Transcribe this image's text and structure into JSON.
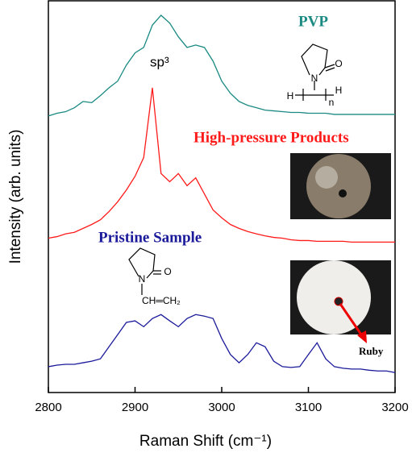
{
  "chart_data": {
    "type": "line",
    "y_label": "Intensity (arb. units)",
    "x_label": "Raman Shift  (cm⁻¹)",
    "x": [
      2800,
      2810,
      2820,
      2830,
      2840,
      2850,
      2860,
      2870,
      2880,
      2890,
      2900,
      2910,
      2920,
      2930,
      2940,
      2950,
      2960,
      2970,
      2980,
      2990,
      3000,
      3010,
      3020,
      3030,
      3040,
      3050,
      3060,
      3070,
      3080,
      3090,
      3100,
      3110,
      3120,
      3130,
      3140,
      3150,
      3160,
      3170,
      3180,
      3190,
      3200
    ],
    "series": [
      {
        "name": "PVP",
        "color": "#1a8a82",
        "values": [
          70.6,
          71.3,
          71.7,
          72.7,
          74.3,
          74.0,
          75.8,
          77.8,
          79.5,
          83.6,
          86.7,
          88.1,
          93.8,
          96.3,
          94.3,
          90.8,
          88.1,
          88.7,
          88.1,
          84.6,
          79.5,
          76.4,
          74.3,
          73.3,
          72.7,
          72.1,
          71.9,
          71.7,
          71.5,
          71.5,
          71.3,
          71.3,
          71.3,
          71.0,
          71.0,
          71.0,
          71.0,
          71.0,
          71.0,
          71.0,
          71.0
        ]
      },
      {
        "name": "High-pressure Products",
        "color": "#ff1a1a",
        "values": [
          39.4,
          39.8,
          40.5,
          40.9,
          41.9,
          42.9,
          44.1,
          46.2,
          48.7,
          51.7,
          55.2,
          60.0,
          77.8,
          55.9,
          53.8,
          55.9,
          52.8,
          54.8,
          50.7,
          46.6,
          44.6,
          42.9,
          41.9,
          41.1,
          40.5,
          40.0,
          39.6,
          39.4,
          39.0,
          38.8,
          38.8,
          38.6,
          38.6,
          38.6,
          38.6,
          38.4,
          38.4,
          38.4,
          38.4,
          38.4,
          38.4
        ]
      },
      {
        "name": "Pristine Sample",
        "color": "#1a1a9a",
        "values": [
          6.6,
          7.0,
          7.2,
          7.2,
          7.6,
          8.0,
          8.6,
          11.7,
          14.8,
          17.9,
          18.3,
          16.8,
          18.9,
          19.9,
          18.3,
          16.8,
          18.9,
          19.9,
          19.5,
          18.9,
          13.8,
          9.7,
          7.6,
          9.7,
          12.7,
          11.7,
          8.0,
          6.6,
          6.4,
          6.6,
          9.7,
          12.7,
          8.6,
          6.6,
          6.2,
          6.0,
          6.0,
          5.7,
          5.5,
          5.5,
          5.1
        ]
      }
    ],
    "annotations": [
      "sp³",
      "Ruby"
    ],
    "structure_labels": [
      "N",
      "O",
      "H",
      "H",
      "n",
      "N",
      "O",
      "CH═CH₂"
    ],
    "xlim": [
      2800,
      3200
    ],
    "xticks": [
      2800,
      2900,
      3000,
      3100,
      3200
    ],
    "ylim": [
      0,
      100
    ]
  }
}
